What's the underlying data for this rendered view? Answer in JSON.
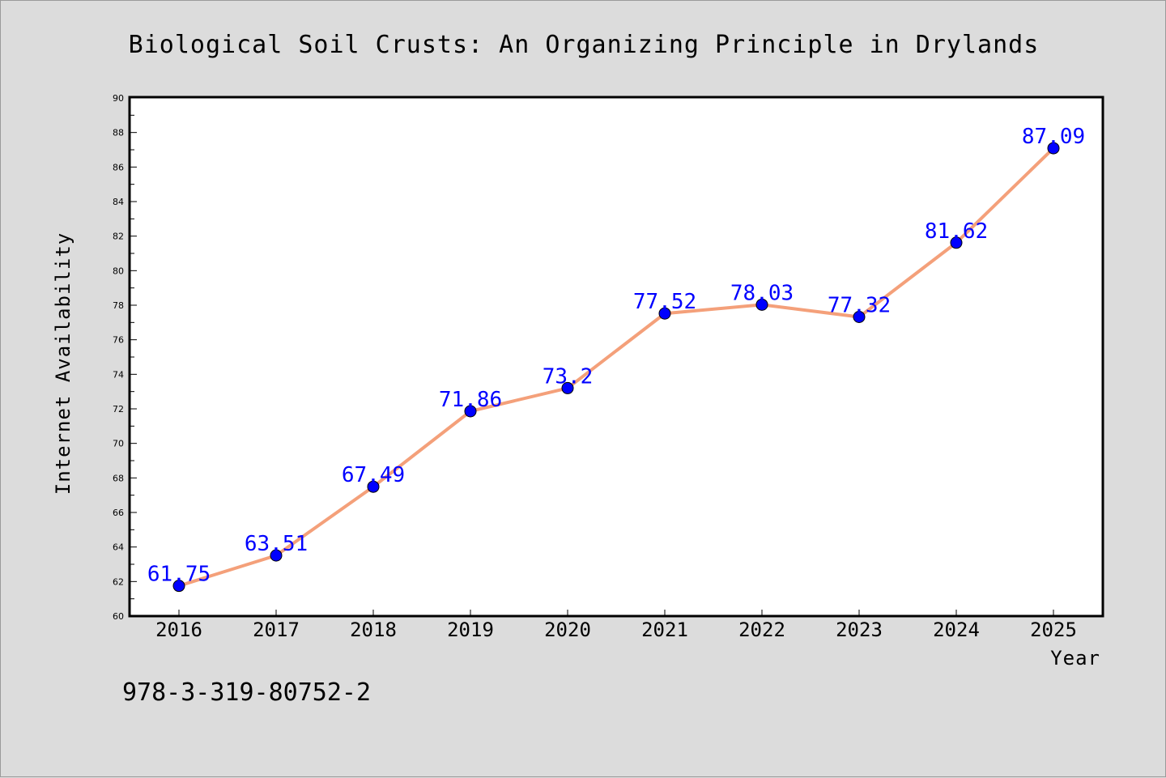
{
  "chart_data": {
    "type": "line",
    "title": "Biological Soil Crusts: An Organizing Principle in Drylands",
    "xlabel": "Year",
    "ylabel": "Internet Availability",
    "categories": [
      "2016",
      "2017",
      "2018",
      "2019",
      "2020",
      "2021",
      "2022",
      "2023",
      "2024",
      "2025"
    ],
    "series": [
      {
        "values": [
          61.75,
          63.51,
          67.49,
          71.86,
          73.2,
          77.52,
          78.03,
          77.32,
          81.62,
          87.09
        ],
        "labels": [
          "61.75",
          "63.51",
          "67.49",
          "71.86",
          "73.2",
          "77.52",
          "78.03",
          "77.32",
          "81.62",
          "87.09"
        ],
        "line_color": "#f4a07a",
        "marker_color": "#0000ff"
      }
    ],
    "ylim": [
      60,
      90
    ],
    "yticks": [
      "60",
      "62",
      "64",
      "66",
      "68",
      "70",
      "72",
      "74",
      "76",
      "78",
      "80",
      "82",
      "84",
      "86",
      "88",
      "90"
    ],
    "grid": false,
    "legend": "none"
  },
  "footnote": "978-3-319-80752-2",
  "colors": {
    "background": "#dcdcdc",
    "plot_background": "#ffffff",
    "line": "#f4a07a",
    "marker": "#0000ff",
    "data_label": "#0000ff"
  }
}
